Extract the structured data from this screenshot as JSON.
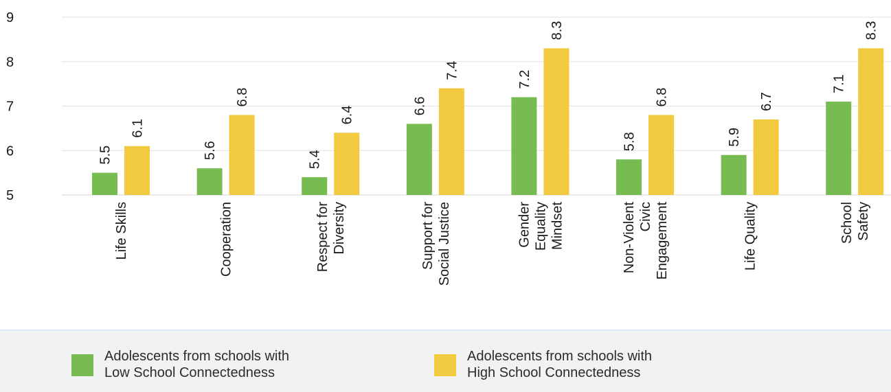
{
  "chart_data": {
    "type": "bar",
    "title": "",
    "xlabel": "",
    "ylabel": "",
    "ylim": [
      5,
      9
    ],
    "yticks": [
      5,
      6,
      7,
      8,
      9
    ],
    "grid": true,
    "legend_placement": "bottom",
    "categories": [
      "Life Skills",
      "Cooperation",
      "Respect for\nDiversity",
      "Support for\nSocial Justice",
      "Gender\nEquality\nMindset",
      "Non-Violent\nCivic\nEngagement",
      "Life Quality",
      "School\nSafety"
    ],
    "series": [
      {
        "name": "Adolescents from schools with\nLow School Connectedness",
        "color": "#77bc51",
        "values": [
          5.5,
          5.6,
          5.4,
          6.6,
          7.2,
          5.8,
          5.9,
          7.1
        ],
        "labels": [
          "5.5",
          "5.6",
          "5.4",
          "6.6",
          "7.2",
          "5.8",
          "5.9",
          "7.1"
        ]
      },
      {
        "name": "Adolescents from schools with\nHigh School Connectedness",
        "color": "#f2ca3f",
        "values": [
          6.1,
          6.8,
          6.4,
          7.4,
          8.3,
          6.8,
          6.7,
          8.3
        ],
        "labels": [
          "6.1",
          "6.8",
          "6.4",
          "7.4",
          "8.3",
          "6.8",
          "6.7",
          "8.3"
        ]
      }
    ]
  }
}
